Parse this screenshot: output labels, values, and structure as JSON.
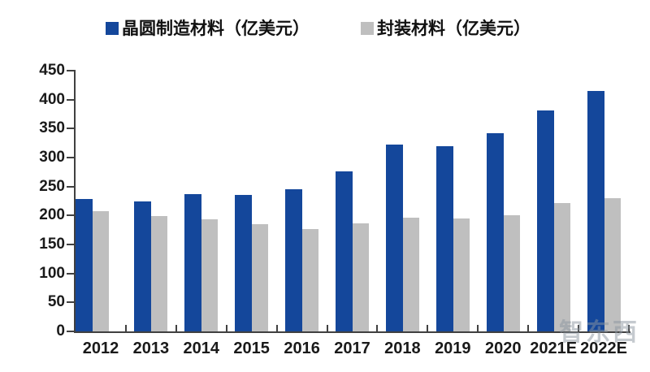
{
  "legend": {
    "items": [
      {
        "label": "晶圆制造材料（亿美元）",
        "color": "#14479B"
      },
      {
        "label": "封装材料（亿美元）",
        "color": "#BFBFBF"
      }
    ]
  },
  "watermark": "智东西",
  "chart_data": {
    "type": "bar",
    "title": "",
    "xlabel": "",
    "ylabel": "",
    "categories": [
      "2012",
      "2013",
      "2014",
      "2015",
      "2016",
      "2017",
      "2018",
      "2019",
      "2020",
      "2021E",
      "2022E"
    ],
    "series": [
      {
        "name": "晶圆制造材料（亿美元）",
        "color": "#14479B",
        "values": [
          229,
          224,
          237,
          236,
          245,
          276,
          322,
          320,
          342,
          382,
          415
        ]
      },
      {
        "name": "封装材料（亿美元）",
        "color": "#BFBFBF",
        "values": [
          207,
          199,
          193,
          185,
          176,
          187,
          196,
          195,
          200,
          221,
          230
        ]
      }
    ],
    "ylim": [
      0,
      450
    ],
    "ytick_step": 50,
    "grid": false,
    "legend_position": "top"
  }
}
